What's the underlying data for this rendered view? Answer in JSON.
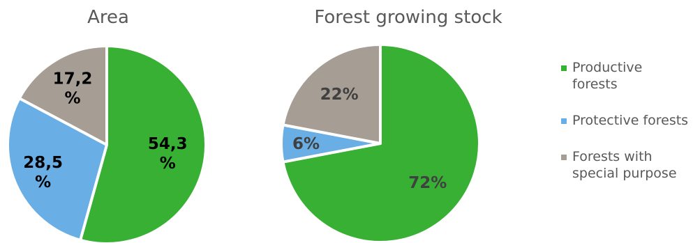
{
  "chart_data": [
    {
      "type": "pie",
      "title": "Area",
      "categories": [
        "Productive forests",
        "Protective forests",
        "Forests with special purpose"
      ],
      "values": [
        54.3,
        28.5,
        17.2
      ],
      "data_labels": [
        "54,3\n%",
        "28,5\n%",
        "17,2\n%"
      ],
      "label_color": "#000000",
      "colors": [
        "#37b034",
        "#6aaee6",
        "#a69d95"
      ]
    },
    {
      "type": "pie",
      "title": "Forest growing stock",
      "categories": [
        "Productive forests",
        "Protective forests",
        "Forests with special purpose"
      ],
      "values": [
        72,
        6,
        22
      ],
      "data_labels": [
        "72%",
        "6%",
        "22%"
      ],
      "label_color": "#404040",
      "colors": [
        "#37b034",
        "#6aaee6",
        "#a69d95"
      ]
    }
  ],
  "legend": {
    "placement": "right",
    "items": [
      {
        "label": "Productive forests",
        "color": "#37b034"
      },
      {
        "label": "Protective forests",
        "color": "#6aaee6"
      },
      {
        "label": "Forests with special purpose",
        "color": "#a69d95"
      }
    ]
  }
}
